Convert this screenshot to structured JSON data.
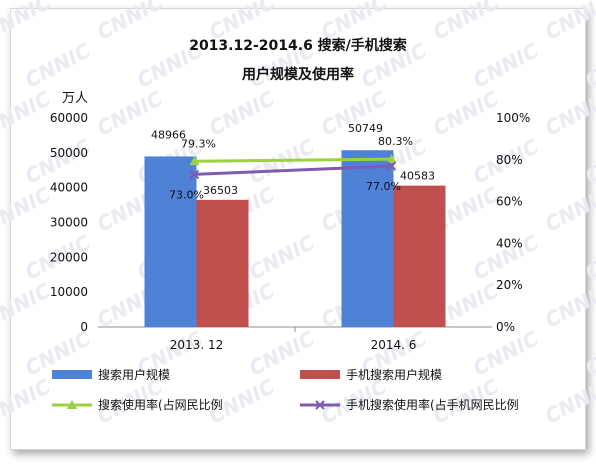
{
  "chart_data": {
    "type": "bar",
    "title": "2013.12-2014.6 搜索/手机搜索",
    "subtitle": "用户规模及使用率",
    "y_unit_label": "万人",
    "categories": [
      "2013. 12",
      "2014. 6"
    ],
    "ylim": [
      0,
      60000
    ],
    "yticks": [
      "0",
      "10000",
      "20000",
      "30000",
      "40000",
      "50000",
      "60000"
    ],
    "y2lim": [
      0,
      100
    ],
    "y2ticks": [
      "0%",
      "20%",
      "40%",
      "60%",
      "80%",
      "100%"
    ],
    "series": [
      {
        "name": "搜索用户规模",
        "kind": "bar",
        "color": "#4f81d7",
        "values": [
          48966,
          50749
        ],
        "labels": [
          "48966",
          "50749"
        ]
      },
      {
        "name": "手机搜索用户规模",
        "kind": "bar",
        "color": "#c0504d",
        "values": [
          36503,
          40583
        ],
        "labels": [
          "36503",
          "40583"
        ]
      },
      {
        "name": "搜索使用率(占网民比例",
        "kind": "line",
        "axis": "right",
        "color": "#9bd143",
        "values": [
          79.3,
          80.3
        ],
        "labels": [
          "79.3%",
          "80.3%"
        ]
      },
      {
        "name": "手机搜索使用率(占手机网民比例",
        "kind": "line",
        "axis": "right",
        "color": "#7e5bb0",
        "values": [
          73.0,
          77.0
        ],
        "labels": [
          "73.0%",
          "77.0%"
        ]
      }
    ],
    "grid": false,
    "legend_position": "bottom",
    "watermark": "CNNIC"
  }
}
